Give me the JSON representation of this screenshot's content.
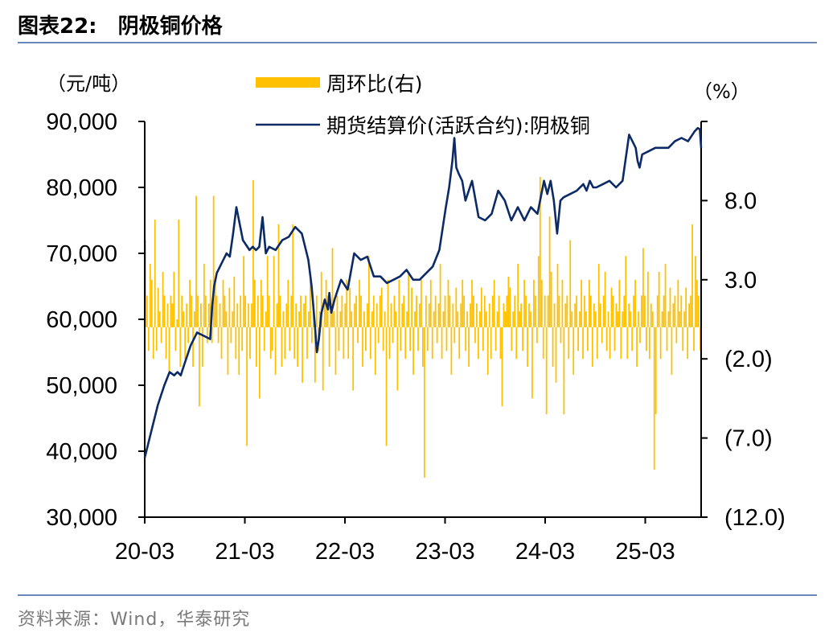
{
  "header": {
    "figure_label": "图表22:",
    "figure_title": "阴极铜价格"
  },
  "source": "资料来源：Wind，华泰研究",
  "colors": {
    "line": "#0c2a66",
    "bar": "#ffc000",
    "rule": "#6b86b8"
  },
  "chart_data": {
    "type": "bar+line",
    "left_unit": "（元/吨）",
    "right_unit": "（%）",
    "left_ticks": [
      "90,000",
      "80,000",
      "70,000",
      "60,000",
      "50,000",
      "40,000",
      "30,000"
    ],
    "right_ticks": [
      "8.0",
      "3.0",
      "(2.0)",
      "(7.0)",
      "(12.0)"
    ],
    "x_ticks": [
      "20-03",
      "21-03",
      "22-03",
      "23-03",
      "24-03",
      "25-03"
    ],
    "ylim_left": [
      30000,
      90000
    ],
    "ylim_right": [
      -12,
      13
    ],
    "legend": [
      {
        "name": "周环比(右)",
        "kind": "bar"
      },
      {
        "name": "期货结算价(活跃合约):阴极铜",
        "kind": "line"
      }
    ],
    "line_series": {
      "name": "期货结算价(活跃合约):阴极铜",
      "t": [
        0,
        1,
        2,
        3,
        3.8,
        4.5,
        5,
        5.5,
        6,
        7,
        8,
        9,
        10,
        10.3,
        10.6,
        11,
        11.5,
        12,
        12.5,
        13,
        13.5,
        14,
        15,
        16,
        16.5,
        17,
        17.5,
        18,
        18.5,
        19,
        20,
        21,
        22,
        23,
        24,
        25,
        25.5,
        26,
        26.3,
        26.6,
        27,
        27.5,
        28,
        28.2,
        28.5,
        29,
        30,
        31,
        32,
        33,
        34,
        35,
        36,
        37,
        38,
        39,
        40,
        41,
        42,
        43,
        44,
        45,
        46,
        46.5,
        47,
        47.3,
        47.6,
        48,
        48.5,
        49,
        50,
        51,
        52,
        53,
        54,
        55,
        56,
        57,
        58,
        59,
        60,
        61,
        61.5,
        62,
        62.5,
        63,
        63.5,
        64,
        65,
        66,
        67,
        67.5,
        68,
        68.5,
        69,
        70,
        71,
        72,
        73,
        74,
        74.5,
        75,
        75.3,
        75.6,
        76,
        77,
        78,
        79,
        80,
        81,
        82,
        83,
        84,
        84.5,
        84.8,
        85
      ],
      "values": [
        39000,
        43000,
        47000,
        50000,
        52000,
        51500,
        52000,
        51500,
        53000,
        56000,
        58000,
        57500,
        57000,
        62000,
        65000,
        67000,
        68000,
        69000,
        70000,
        69500,
        73000,
        77000,
        72000,
        70500,
        71000,
        70500,
        71000,
        75500,
        70000,
        71000,
        70500,
        72000,
        72500,
        74000,
        73000,
        69000,
        65000,
        59000,
        55000,
        57000,
        61000,
        63000,
        61500,
        64000,
        61000,
        63000,
        66000,
        64500,
        70000,
        69000,
        69500,
        66500,
        66500,
        65500,
        66000,
        66500,
        67500,
        66000,
        66000,
        67000,
        68000,
        70500,
        77000,
        80000,
        84000,
        87500,
        83000,
        82000,
        81000,
        78000,
        81000,
        75500,
        75000,
        76000,
        79500,
        78000,
        75000,
        77000,
        75000,
        77000,
        76000,
        81000,
        79000,
        81000,
        78000,
        73000,
        78000,
        78500,
        79000,
        79500,
        80500,
        79500,
        81000,
        80000,
        80000,
        80500,
        81000,
        80000,
        81000,
        88000,
        87000,
        86000,
        84000,
        83000,
        85000,
        85500,
        86000,
        86000,
        86000,
        87000,
        87500,
        87000,
        88500,
        89000,
        88800,
        86000
      ]
    },
    "bar_series": {
      "name": "周环比(右)",
      "values_pct": [
        5.5,
        2,
        -1.5,
        4,
        3,
        -2,
        6.8,
        -1.5,
        2.5,
        1,
        -1,
        3.5,
        2,
        -2,
        1.5,
        -2.8,
        2,
        1.5,
        3.5,
        -1.5,
        0.5,
        6.8,
        -2.5,
        2,
        1,
        -2,
        1.5,
        -1,
        3,
        2,
        -2.5,
        1,
        8.3,
        2,
        -5,
        1.5,
        -2.5,
        4,
        2,
        -1,
        1.5,
        3,
        -1,
        8.3,
        3,
        2,
        -1,
        1.5,
        -2,
        3,
        2,
        1,
        -3,
        2.5,
        -1,
        1,
        3.2,
        -2,
        1.5,
        -3,
        2,
        -1.5,
        4.5,
        2,
        -7.5,
        1.5,
        -2,
        1.5,
        9.3,
        3,
        -2.5,
        2,
        -4.5,
        3,
        2,
        -1.5,
        1,
        4.5,
        2,
        -2,
        -1.5,
        4.5,
        -3,
        1.5,
        6.5,
        2,
        -2.5,
        1,
        -2,
        1.5,
        3,
        -1.5,
        2,
        6.5,
        -2,
        1.5,
        -2.5,
        1,
        2,
        -3.5,
        1.5,
        2,
        -2,
        1,
        3,
        -1,
        1.5,
        -3.5,
        2,
        -1.5,
        1,
        3.5,
        -4,
        1.5,
        3,
        2,
        -2.5,
        1.5,
        5,
        1,
        -3,
        2,
        -1.5,
        1,
        2,
        -2,
        1.5,
        3,
        -2,
        2.5,
        1,
        -4,
        1.5,
        2,
        -1,
        3,
        2,
        -2.5,
        1,
        -1.5,
        1.5,
        4.5,
        -2,
        1,
        2,
        -3,
        1.5,
        -1,
        2,
        2.5,
        -1.5,
        1,
        -7.5,
        3,
        -2,
        1.5,
        -1,
        2,
        1,
        -4,
        3,
        -1.5,
        1.5,
        2,
        -2,
        1,
        3.5,
        -1.5,
        2.5,
        -3,
        1,
        2,
        -1.5,
        1.5,
        3,
        -2.5,
        -9.5,
        2,
        -1.5,
        1.5,
        3,
        -2,
        1,
        2,
        -1,
        1.5,
        4,
        -2,
        1,
        2,
        -1.5,
        3,
        2,
        -3,
        1.5,
        -1,
        2.5,
        1,
        -2,
        1.5,
        3,
        2,
        -1.5,
        1,
        -2.5,
        1.5,
        3,
        2,
        -1,
        1.5,
        -2,
        1,
        2.5,
        -1.5,
        2,
        1,
        -3,
        1.5,
        -2,
        2,
        3,
        -1.5,
        1,
        2,
        -2,
        -5,
        1.5,
        1,
        2,
        3.2,
        2.5,
        -1.5,
        1,
        2,
        -2,
        4,
        1,
        1.5,
        -1.5,
        3,
        2,
        -2.5,
        1.5,
        1,
        -4.5,
        3,
        2,
        -1,
        4.5,
        9.5,
        3,
        -2,
        2,
        -5.5,
        2,
        7,
        3.5,
        -2.5,
        1.5,
        -3.5,
        4,
        2,
        -1,
        3,
        -5.5,
        1.5,
        2,
        -2,
        5.5,
        1,
        -3,
        1.5,
        2,
        -1.5,
        1,
        3,
        -2,
        2,
        1,
        -1.5,
        3,
        2,
        -2.5,
        1.5,
        1,
        -2,
        4,
        1.5,
        -1,
        2,
        3.5,
        -1.5,
        1,
        -2,
        2.5,
        2,
        -1.5,
        1.5,
        1,
        3,
        -2,
        1,
        2,
        4.5,
        -2,
        1.5,
        1,
        -1.5,
        2,
        3,
        -2.5,
        1,
        -1,
        2,
        5,
        2,
        -1.5,
        3.5,
        -2,
        1.5,
        1,
        -9,
        -5.5,
        2,
        3.5,
        -2,
        1,
        2,
        4,
        -1.5,
        1,
        2.5,
        -3,
        1.5,
        2,
        -1,
        3,
        1,
        2,
        -1.5,
        1,
        2.5,
        -2,
        1.5,
        2,
        6.5,
        -1.5,
        4.5,
        3,
        2,
        -1.5
      ]
    }
  }
}
